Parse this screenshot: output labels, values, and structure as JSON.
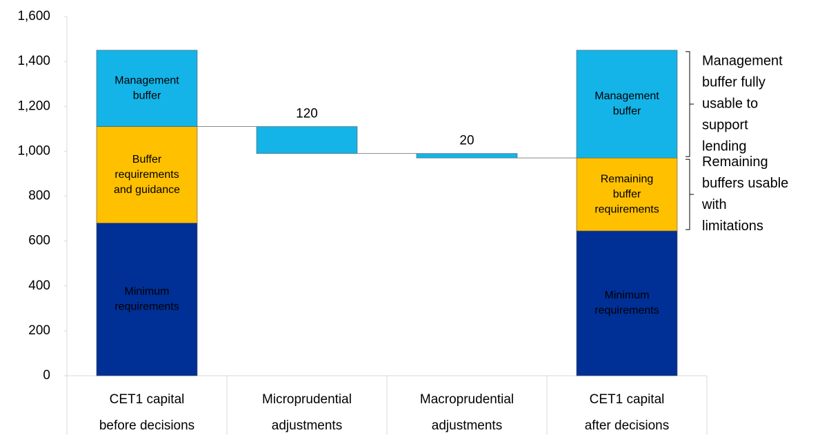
{
  "chart_data": {
    "type": "waterfall",
    "ylim": [
      0,
      1600
    ],
    "yticks": [
      0,
      200,
      400,
      600,
      800,
      {
        "value": 1000,
        "label": "1,000"
      },
      {
        "value": 1200,
        "label": "1,200"
      },
      {
        "value": 1400,
        "label": "1,400"
      },
      {
        "value": 1600,
        "label": "1,600"
      }
    ],
    "steps": [
      {
        "kind": "total",
        "category": [
          "CET1 capital",
          "before decisions"
        ],
        "segments": [
          {
            "label": [
              "Minimum",
              "requirements"
            ],
            "value": 680,
            "color": "#002f96",
            "label_color": "#ffffff"
          },
          {
            "label": [
              "Buffer",
              "requirements",
              "and guidance"
            ],
            "value": 430,
            "color": "#ffc000",
            "label_color": "#000000"
          },
          {
            "label": [
              "Management",
              "buffer"
            ],
            "value": 340,
            "color": "#14b4e8",
            "label_color": "#000000"
          }
        ]
      },
      {
        "kind": "decrease",
        "category": [
          "Microprudential",
          "adjustments"
        ],
        "value": 120,
        "color": "#14b4e8"
      },
      {
        "kind": "decrease",
        "category": [
          "Macroprudential",
          "adjustments"
        ],
        "value": 20,
        "color": "#14b4e8"
      },
      {
        "kind": "total",
        "category": [
          "CET1 capital",
          "after decisions"
        ],
        "segments": [
          {
            "label": [
              "Minimum",
              "requirements"
            ],
            "value": 645,
            "color": "#002f96",
            "label_color": "#ffffff"
          },
          {
            "label": [
              "Remaining",
              "buffer",
              "requirements"
            ],
            "value": 325,
            "color": "#ffc000",
            "label_color": "#000000",
            "note": [
              "Remaining",
              "buffers usable",
              "with",
              "limitations"
            ]
          },
          {
            "label": [
              "Management",
              "buffer"
            ],
            "value": 480,
            "color": "#14b4e8",
            "label_color": "#000000",
            "note": [
              "Management",
              "buffer fully",
              "usable to",
              "support",
              "lending"
            ]
          }
        ]
      }
    ]
  }
}
